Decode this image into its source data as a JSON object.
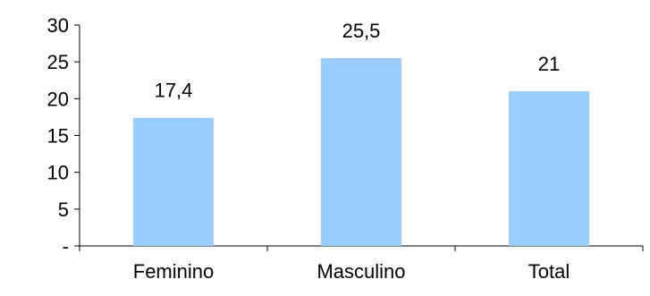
{
  "chart_data": {
    "type": "bar",
    "categories": [
      "Feminino",
      "Masculino",
      "Total"
    ],
    "values": [
      17.4,
      25.5,
      21
    ],
    "data_labels": [
      "17,4",
      "25,5",
      "21"
    ],
    "ylim": [
      0,
      30
    ],
    "y_ticks": [
      0,
      5,
      10,
      15,
      20,
      25,
      30
    ],
    "y_tick_labels": [
      "-",
      "5",
      "10",
      "15",
      "20",
      "25",
      "30"
    ],
    "title": "",
    "xlabel": "",
    "ylabel": "",
    "grid": false,
    "legend": "none",
    "bar_color": "#99ccff",
    "axis_color": "#000000"
  }
}
